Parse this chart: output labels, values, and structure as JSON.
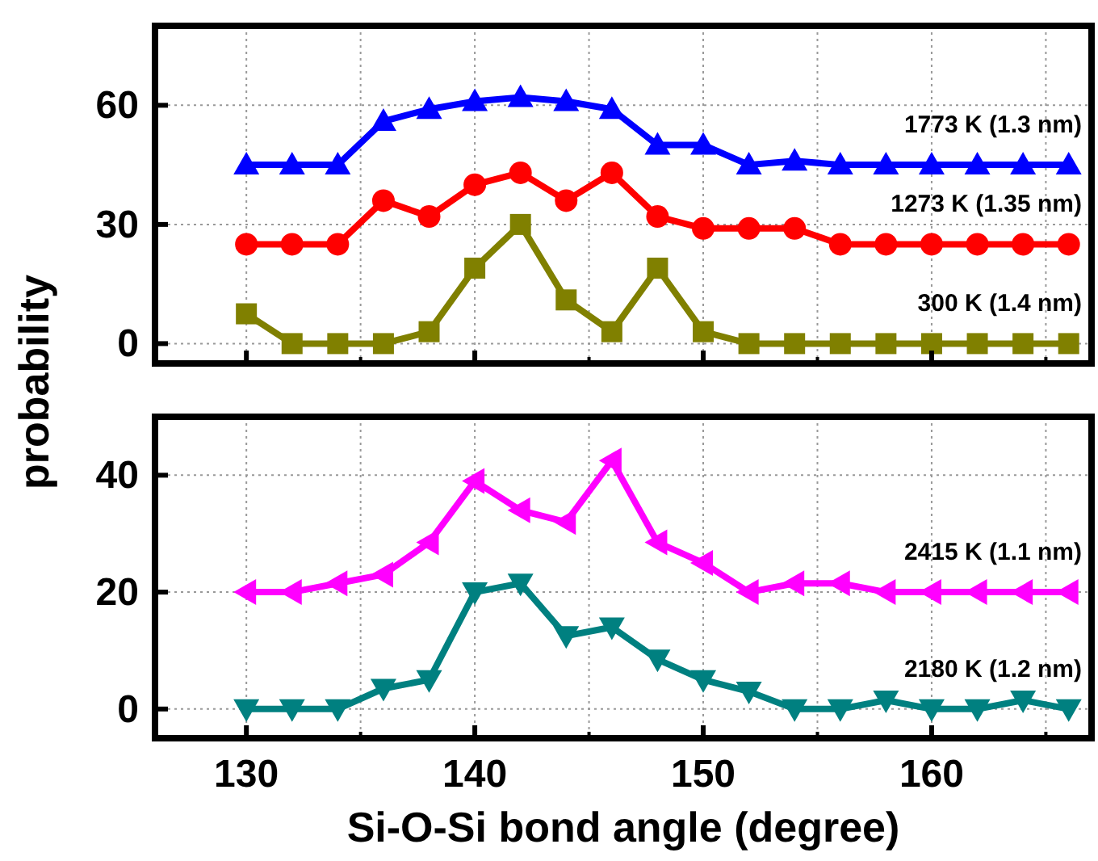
{
  "chart_data": [
    {
      "type": "line",
      "ylabel": "probability",
      "x": [
        130,
        132,
        134,
        136,
        138,
        140,
        142,
        144,
        146,
        148,
        150,
        152,
        154,
        156,
        158,
        160,
        162,
        164,
        166
      ],
      "xlim": [
        126,
        167
      ],
      "xticks": [
        130,
        140,
        150,
        160
      ],
      "ylim": [
        -5,
        80
      ],
      "yticks": [
        0,
        30,
        60
      ],
      "grid": true,
      "tick_labels": "y",
      "line_style": "solid",
      "series": [
        {
          "name": "1773 K (1.3 nm)",
          "color": "#0000ff",
          "marker": "triangle",
          "values": [
            45,
            45,
            45,
            56,
            59,
            61,
            62,
            61,
            59,
            50,
            50,
            45,
            46,
            45,
            45,
            45,
            45,
            45,
            45
          ]
        },
        {
          "name": "1273 K (1.35 nm)",
          "color": "#ff0000",
          "marker": "circle",
          "values": [
            25,
            25,
            25,
            36,
            32,
            40,
            43,
            36,
            43,
            32,
            29,
            29,
            29,
            25,
            25,
            25,
            25,
            25,
            25
          ]
        },
        {
          "name": "300 K (1.4 nm)",
          "color": "#808000",
          "marker": "square",
          "values": [
            7.5,
            0,
            0,
            0,
            3,
            19,
            30,
            11,
            3,
            19,
            3,
            0,
            0,
            0,
            0,
            0,
            0,
            0,
            0
          ]
        }
      ]
    },
    {
      "type": "line",
      "xlabel": "Si-O-Si bond angle (degree)",
      "x": [
        130,
        132,
        134,
        136,
        138,
        140,
        142,
        144,
        146,
        148,
        150,
        152,
        154,
        156,
        158,
        160,
        162,
        164,
        166
      ],
      "xlim": [
        126,
        167
      ],
      "xticks": [
        130,
        140,
        150,
        160
      ],
      "ylim": [
        -5,
        50
      ],
      "yticks": [
        0,
        20,
        40
      ],
      "grid": true,
      "line_style": "solid",
      "series": [
        {
          "name": "2415 K (1.1 nm)",
          "color": "#ff00ff",
          "marker": "triangle-left",
          "values": [
            20,
            20,
            21.5,
            23,
            28.5,
            39,
            34,
            32,
            42.5,
            28.5,
            25,
            20,
            21.5,
            21.5,
            20,
            20,
            20,
            20,
            20
          ]
        },
        {
          "name": "2180 K (1.2 nm)",
          "color": "#008080",
          "marker": "triangle-down",
          "values": [
            0,
            0,
            0,
            3.5,
            5,
            20,
            21.5,
            12.5,
            14,
            8.5,
            5,
            3,
            0,
            0,
            1.5,
            0,
            0,
            1.5,
            0
          ]
        }
      ]
    }
  ]
}
